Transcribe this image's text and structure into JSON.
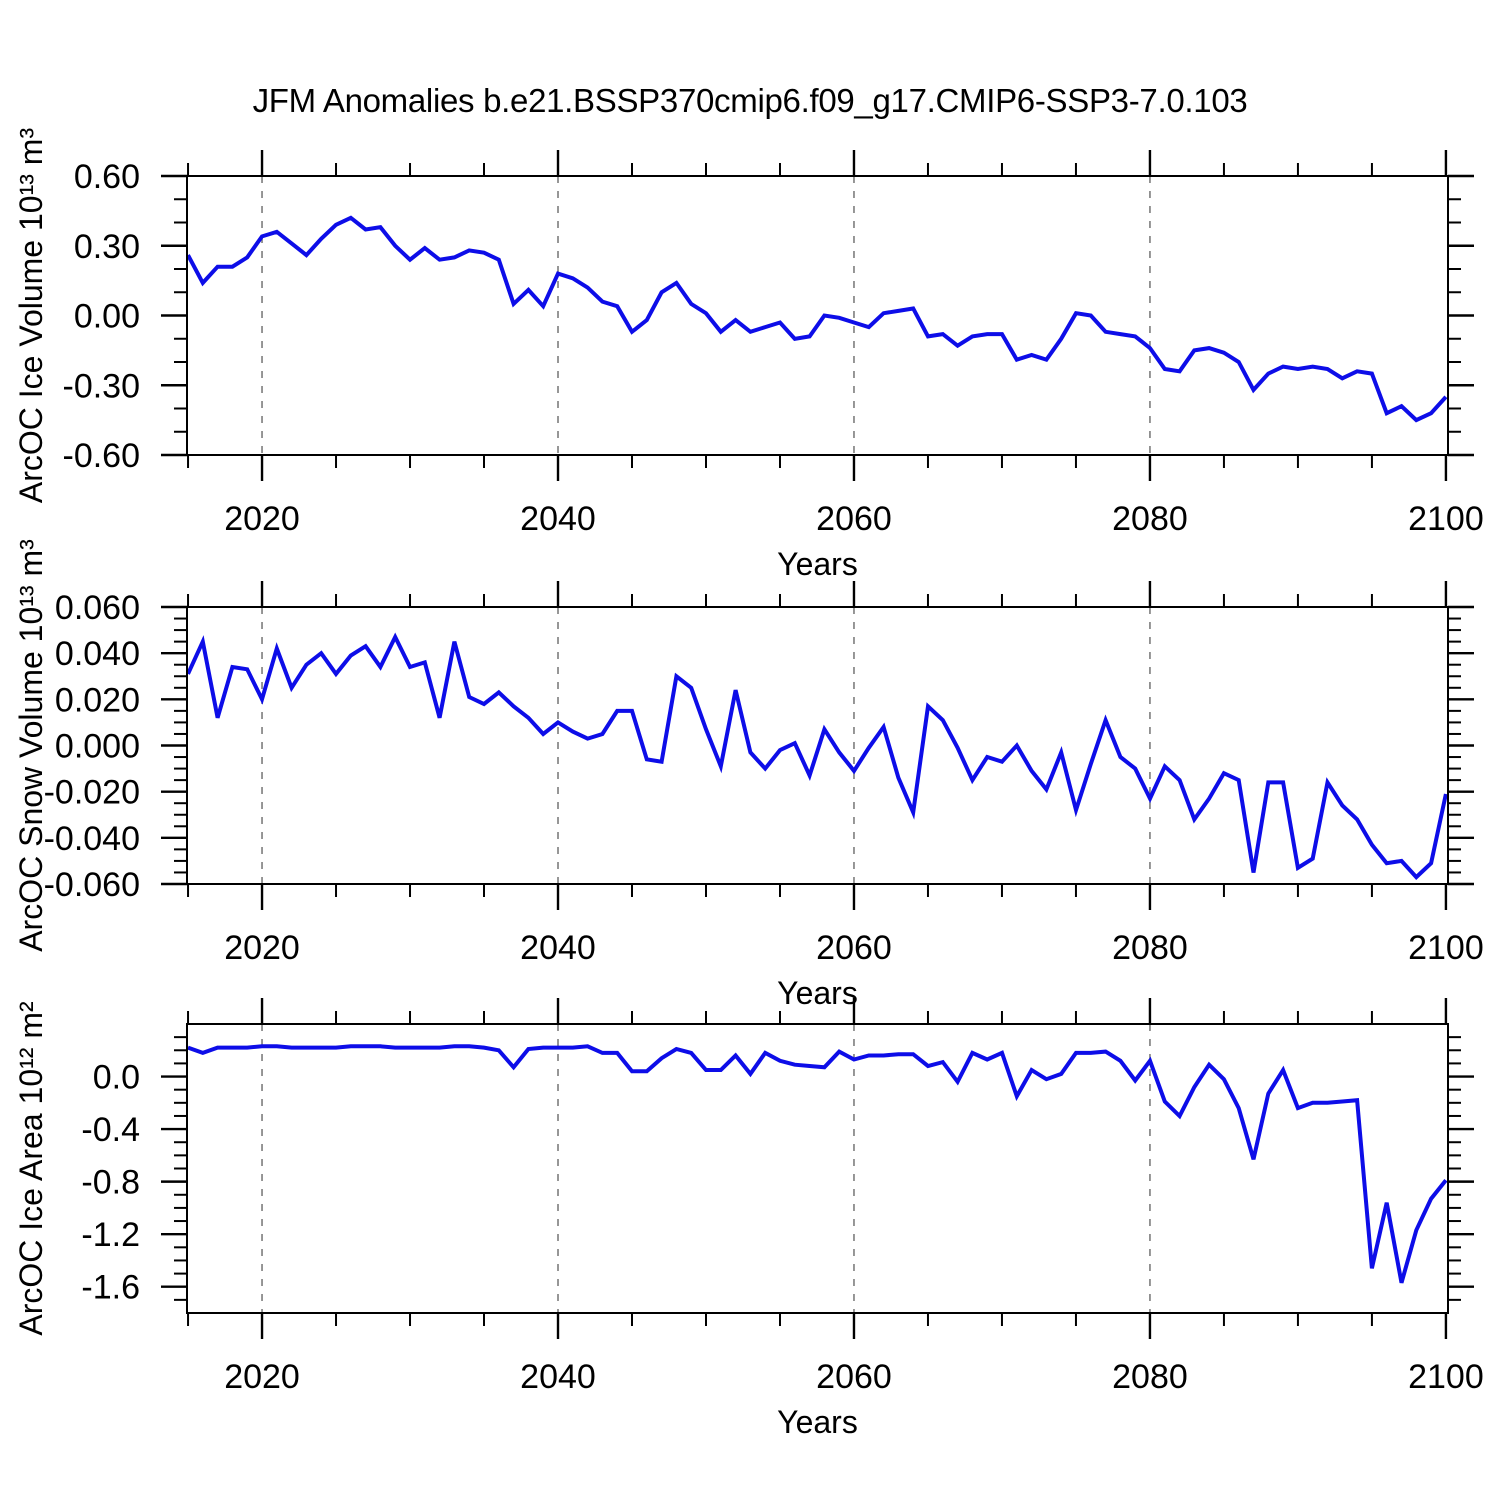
{
  "title": "JFM Anomalies b.e21.BSSP370cmip6.f09_g17.CMIP6-SSP3-7.0.103",
  "style": {
    "line_color": "#0d0de8",
    "grid_color": "#7d7d7d",
    "frame_color": "#000000",
    "background": "#ffffff"
  },
  "x_axis": {
    "label": "Years",
    "major_ticks": [
      2020,
      2040,
      2060,
      2080,
      2100
    ],
    "major_tick_labels": [
      "2020",
      "2040",
      "2060",
      "2080",
      "2100"
    ],
    "minor_step": 5,
    "grid_years": [
      2020,
      2040,
      2060,
      2080
    ],
    "start_year": 2015,
    "end_year": 2100
  },
  "chart_data": [
    {
      "type": "line",
      "name": "arcoc-ice-volume",
      "ylabel": "ArcOC Ice Volume 10¹³ m³",
      "xlabel": "Years",
      "ylim": [
        -0.6,
        0.6
      ],
      "ytick_values": [
        0.6,
        0.3,
        0.0,
        -0.3,
        -0.6
      ],
      "ytick_labels": [
        "0.60",
        "0.30",
        "0.00",
        "-0.30",
        "-0.60"
      ],
      "y_minor_step": 0.1,
      "x_start": 2015,
      "x_step": 1,
      "grid": "x-dashed",
      "legend": "none",
      "values": [
        0.26,
        0.14,
        0.21,
        0.21,
        0.25,
        0.34,
        0.36,
        0.31,
        0.26,
        0.33,
        0.39,
        0.42,
        0.37,
        0.38,
        0.3,
        0.24,
        0.29,
        0.24,
        0.25,
        0.28,
        0.27,
        0.24,
        0.05,
        0.11,
        0.04,
        0.18,
        0.16,
        0.12,
        0.06,
        0.04,
        -0.07,
        -0.02,
        0.1,
        0.14,
        0.05,
        0.01,
        -0.07,
        -0.02,
        -0.07,
        -0.05,
        -0.03,
        -0.1,
        -0.09,
        0.0,
        -0.01,
        -0.03,
        -0.05,
        0.01,
        0.02,
        0.03,
        -0.09,
        -0.08,
        -0.13,
        -0.09,
        -0.08,
        -0.08,
        -0.19,
        -0.17,
        -0.19,
        -0.1,
        0.01,
        0.0,
        -0.07,
        -0.08,
        -0.09,
        -0.14,
        -0.23,
        -0.24,
        -0.15,
        -0.14,
        -0.16,
        -0.2,
        -0.32,
        -0.25,
        -0.22,
        -0.23,
        -0.22,
        -0.23,
        -0.27,
        -0.24,
        -0.25,
        -0.42,
        -0.39,
        -0.45,
        -0.42,
        -0.35
      ]
    },
    {
      "type": "line",
      "name": "arcoc-snow-volume",
      "ylabel": "ArcOC Snow Volume 10¹³ m³",
      "xlabel": "Years",
      "ylim": [
        -0.06,
        0.06
      ],
      "ytick_values": [
        0.06,
        0.04,
        0.02,
        0.0,
        -0.02,
        -0.04,
        -0.06
      ],
      "ytick_labels": [
        "0.060",
        "0.040",
        "0.020",
        "0.000",
        "-0.020",
        "-0.040",
        "-0.060"
      ],
      "y_minor_step": 0.005,
      "x_start": 2015,
      "x_step": 1,
      "grid": "x-dashed",
      "legend": "none",
      "values": [
        0.031,
        0.045,
        0.012,
        0.034,
        0.033,
        0.02,
        0.042,
        0.025,
        0.035,
        0.04,
        0.031,
        0.039,
        0.043,
        0.034,
        0.047,
        0.034,
        0.036,
        0.012,
        0.045,
        0.021,
        0.018,
        0.023,
        0.017,
        0.012,
        0.005,
        0.01,
        0.006,
        0.003,
        0.005,
        0.015,
        0.015,
        -0.006,
        -0.007,
        0.03,
        0.025,
        0.007,
        -0.009,
        0.024,
        -0.003,
        -0.01,
        -0.002,
        0.001,
        -0.013,
        0.007,
        -0.003,
        -0.011,
        -0.001,
        0.008,
        -0.014,
        -0.029,
        0.017,
        0.011,
        -0.001,
        -0.015,
        -0.005,
        -0.007,
        0.0,
        -0.011,
        -0.019,
        -0.003,
        -0.028,
        -0.008,
        0.011,
        -0.005,
        -0.01,
        -0.023,
        -0.009,
        -0.015,
        -0.032,
        -0.023,
        -0.012,
        -0.015,
        -0.055,
        -0.016,
        -0.016,
        -0.053,
        -0.049,
        -0.016,
        -0.026,
        -0.032,
        -0.043,
        -0.051,
        -0.05,
        -0.057,
        -0.051,
        -0.021
      ]
    },
    {
      "type": "line",
      "name": "arcoc-ice-area",
      "ylabel": "ArcOC Ice Area 10¹² m²",
      "xlabel": "Years",
      "ylim": [
        -1.8,
        0.4
      ],
      "ytick_values": [
        0.0,
        -0.4,
        -0.8,
        -1.2,
        -1.6
      ],
      "ytick_labels": [
        "0.0",
        "-0.4",
        "-0.8",
        "-1.2",
        "-1.6"
      ],
      "y_minor_step": 0.1,
      "x_start": 2015,
      "x_step": 1,
      "grid": "x-dashed",
      "legend": "none",
      "values": [
        0.22,
        0.18,
        0.22,
        0.22,
        0.22,
        0.23,
        0.23,
        0.22,
        0.22,
        0.22,
        0.22,
        0.23,
        0.23,
        0.23,
        0.22,
        0.22,
        0.22,
        0.22,
        0.23,
        0.23,
        0.22,
        0.2,
        0.07,
        0.21,
        0.22,
        0.22,
        0.22,
        0.23,
        0.18,
        0.18,
        0.04,
        0.04,
        0.14,
        0.21,
        0.18,
        0.05,
        0.05,
        0.16,
        0.02,
        0.18,
        0.12,
        0.09,
        0.08,
        0.07,
        0.19,
        0.13,
        0.16,
        0.16,
        0.17,
        0.17,
        0.08,
        0.11,
        -0.04,
        0.18,
        0.13,
        0.18,
        -0.15,
        0.05,
        -0.02,
        0.02,
        0.18,
        0.18,
        0.19,
        0.12,
        -0.03,
        0.12,
        -0.19,
        -0.3,
        -0.08,
        0.09,
        -0.02,
        -0.24,
        -0.63,
        -0.13,
        0.05,
        -0.24,
        -0.2,
        -0.2,
        -0.19,
        -0.18,
        -1.46,
        -0.96,
        -1.57,
        -1.17,
        -0.93,
        -0.79
      ]
    }
  ]
}
